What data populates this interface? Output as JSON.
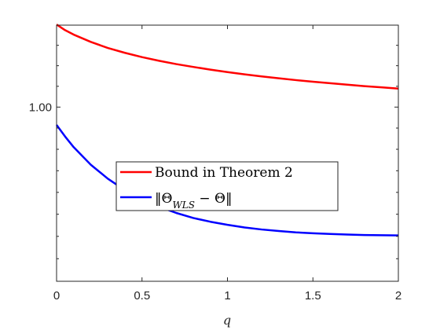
{
  "chart_data": {
    "type": "line",
    "title": "",
    "xlabel": "q",
    "ylabel": "",
    "xlim": [
      0,
      2
    ],
    "ylim": [
      0.92,
      1.04
    ],
    "y_scale": "log",
    "x_ticks": [
      0,
      0.5,
      1,
      1.5,
      2
    ],
    "x_tick_labels": [
      "0",
      "0.5",
      "1",
      "1.5",
      "2"
    ],
    "y_ticks": [
      1.0
    ],
    "y_tick_labels": [
      "1.00"
    ],
    "grid": false,
    "legend_position": "center",
    "series": [
      {
        "name": "Bound in Theorem 2",
        "color": "#ff0000",
        "x": [
          0,
          0.05,
          0.1,
          0.2,
          0.3,
          0.4,
          0.5,
          0.6,
          0.7,
          0.8,
          0.9,
          1.0,
          1.1,
          1.2,
          1.3,
          1.4,
          1.5,
          1.6,
          1.7,
          1.8,
          1.9,
          2.0
        ],
        "y": [
          1.0403,
          1.0375,
          1.0353,
          1.0317,
          1.0287,
          1.0263,
          1.0242,
          1.0224,
          1.0208,
          1.0194,
          1.0181,
          1.0169,
          1.0158,
          1.0148,
          1.0139,
          1.013,
          1.0122,
          1.0115,
          1.0108,
          1.0101,
          1.0095,
          1.0089
        ]
      },
      {
        "name": "‖Θ_WLS − Θ‖",
        "color": "#0000ff",
        "x": [
          0,
          0.05,
          0.1,
          0.2,
          0.3,
          0.4,
          0.5,
          0.6,
          0.7,
          0.8,
          0.9,
          1.0,
          1.1,
          1.2,
          1.3,
          1.4,
          1.5,
          1.6,
          1.7,
          1.8,
          1.9,
          2.0
        ],
        "y": [
          0.9915,
          0.986,
          0.981,
          0.9728,
          0.9663,
          0.961,
          0.9568,
          0.9534,
          0.9506,
          0.9483,
          0.9466,
          0.9452,
          0.944,
          0.9431,
          0.9424,
          0.9418,
          0.9414,
          0.9411,
          0.9408,
          0.9406,
          0.9405,
          0.9404
        ]
      }
    ]
  }
}
